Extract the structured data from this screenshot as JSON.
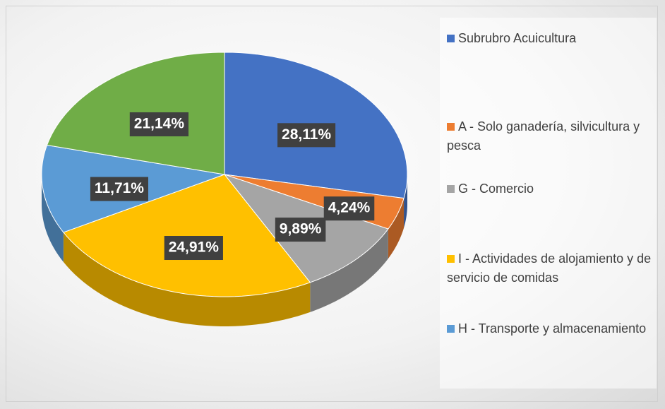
{
  "chart_data": {
    "type": "pie",
    "three_d": true,
    "categories": [
      "Subrubro Acuicultura",
      "A - Solo ganadería, silvicultura y pesca",
      "G - Comercio",
      "I - Actividades de alojamiento y de servicio de comidas",
      "H - Transporte y almacenamiento",
      null
    ],
    "values": [
      28.11,
      4.24,
      9.89,
      24.91,
      11.71,
      21.14
    ],
    "value_labels": [
      "28,11%",
      "4,24%",
      "9,89%",
      "24,91%",
      "11,71%",
      "21,14%"
    ],
    "colors": [
      "#4472c4",
      "#ed7d31",
      "#a5a5a5",
      "#ffc000",
      "#5b9bd5",
      "#70ad47"
    ],
    "legend": "right"
  }
}
